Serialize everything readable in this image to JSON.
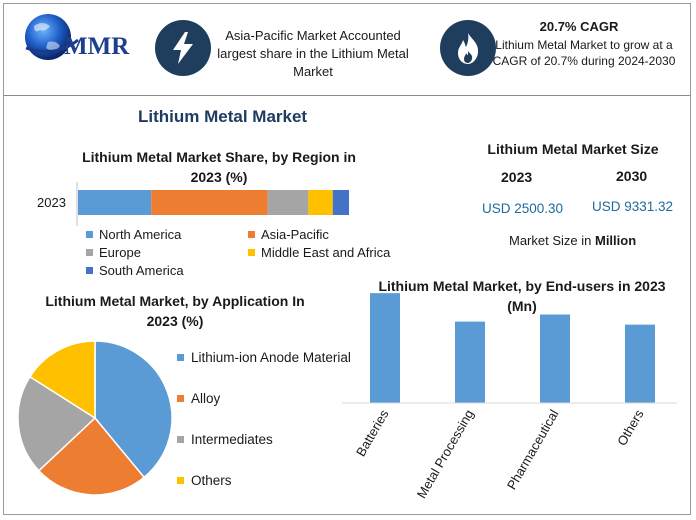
{
  "header": {
    "logo_text": "MMR",
    "box1_text": "Asia-Pacific Market Accounted largest share in the Lithium Metal Market",
    "box2_title": "20.7% CAGR",
    "box2_text": "Lithium Metal Market to grow at a CAGR of 20.7% during 2024-2030",
    "icon1": "lightning-icon",
    "icon2": "flame-icon",
    "icon_bg": "#1f3e5e"
  },
  "main_title": "Lithium Metal Market",
  "market_size": {
    "title": "Lithium Metal Market Size",
    "year1": "2023",
    "year2": "2030",
    "value1": "USD 2500.30",
    "value2": "USD 9331.32",
    "note_prefix": "Market Size in ",
    "note_bold": "Million"
  },
  "chart_data": [
    {
      "type": "bar",
      "orientation": "horizontal-stacked",
      "title": "Lithium Metal Market Share, by Region in 2023 (%)",
      "categories": [
        "2023"
      ],
      "series": [
        {
          "name": "North America",
          "values": [
            27
          ],
          "color": "#5b9bd5"
        },
        {
          "name": "Asia-Pacific",
          "values": [
            43
          ],
          "color": "#ed7d31"
        },
        {
          "name": "Europe",
          "values": [
            15
          ],
          "color": "#a5a5a5"
        },
        {
          "name": "Middle East and Africa",
          "values": [
            9
          ],
          "color": "#ffc000"
        },
        {
          "name": "South America",
          "values": [
            6
          ],
          "color": "#4472c4"
        }
      ],
      "xlim": [
        0,
        100
      ],
      "legend_position": "bottom"
    },
    {
      "type": "pie",
      "title": "Lithium Metal Market, by Application In 2023 (%)",
      "labels": [
        "Lithium-ion Anode Material",
        "Alloy",
        "Intermediates",
        "Others"
      ],
      "values": [
        39,
        24,
        21,
        16
      ],
      "colors": [
        "#5b9bd5",
        "#ed7d31",
        "#a5a5a5",
        "#ffc000"
      ],
      "legend_position": "right"
    },
    {
      "type": "bar",
      "title": "Lithium Metal Market, by End-users in 2023 (Mn)",
      "categories": [
        "Batteries",
        "Metal Processing",
        "Pharmaceutical",
        "Others"
      ],
      "values": [
        108,
        80,
        87,
        77
      ],
      "ylim": [
        0,
        115
      ],
      "color": "#5b9bd5",
      "grid": false
    }
  ]
}
